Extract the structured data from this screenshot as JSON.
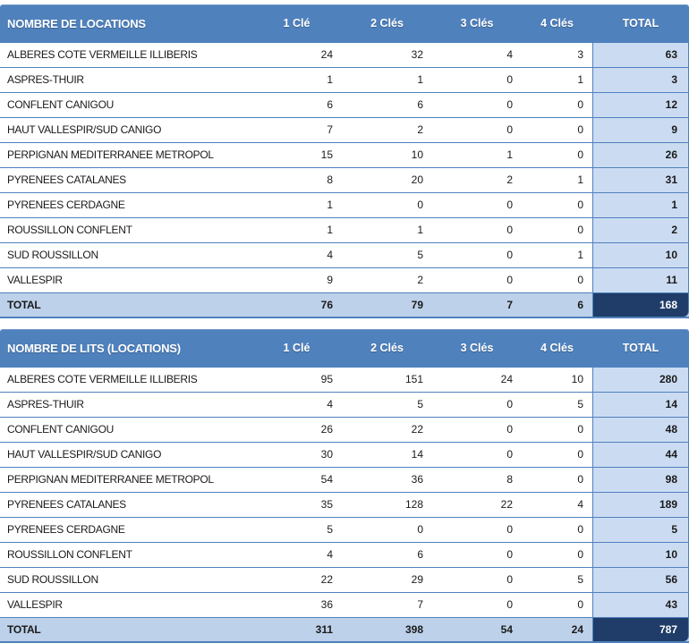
{
  "colors": {
    "header_bg": "#4F81BD",
    "header_text": "#FFFFFF",
    "line": "#4F81BD",
    "total_col_bg": "#CBDCF2",
    "total_row_bg": "#BDD1EA",
    "grand_bg": "#1F3D68",
    "grand_text": "#FFFFFF",
    "text": "#1A1A1A"
  },
  "chart_data": [
    {
      "type": "table",
      "title": "NOMBRE DE LOCATIONS",
      "columns": [
        "1 Clé",
        "2 Clés",
        "3 Clés",
        "4 Clés",
        "TOTAL"
      ],
      "rows": [
        {
          "label": "ALBERES COTE VERMEILLE ILLIBERIS",
          "values": [
            24,
            32,
            4,
            3
          ],
          "total": 63
        },
        {
          "label": "ASPRES-THUIR",
          "values": [
            1,
            1,
            0,
            1
          ],
          "total": 3
        },
        {
          "label": "CONFLENT CANIGOU",
          "values": [
            6,
            6,
            0,
            0
          ],
          "total": 12
        },
        {
          "label": "HAUT VALLESPIR/SUD CANIGO",
          "values": [
            7,
            2,
            0,
            0
          ],
          "total": 9
        },
        {
          "label": "PERPIGNAN MEDITERRANEE METROPOL",
          "values": [
            15,
            10,
            1,
            0
          ],
          "total": 26
        },
        {
          "label": "PYRENEES CATALANES",
          "values": [
            8,
            20,
            2,
            1
          ],
          "total": 31
        },
        {
          "label": "PYRENEES CERDAGNE",
          "values": [
            1,
            0,
            0,
            0
          ],
          "total": 1
        },
        {
          "label": "ROUSSILLON CONFLENT",
          "values": [
            1,
            1,
            0,
            0
          ],
          "total": 2
        },
        {
          "label": "SUD ROUSSILLON",
          "values": [
            4,
            5,
            0,
            1
          ],
          "total": 10
        },
        {
          "label": "VALLESPIR",
          "values": [
            9,
            2,
            0,
            0
          ],
          "total": 11
        }
      ],
      "total_row": {
        "label": "TOTAL",
        "values": [
          76,
          79,
          7,
          6
        ],
        "total": 168
      }
    },
    {
      "type": "table",
      "title": "NOMBRE DE LITS (LOCATIONS)",
      "columns": [
        "1 Clé",
        "2 Clés",
        "3 Clés",
        "4 Clés",
        "TOTAL"
      ],
      "rows": [
        {
          "label": "ALBERES COTE VERMEILLE ILLIBERIS",
          "values": [
            95,
            151,
            24,
            10
          ],
          "total": 280
        },
        {
          "label": "ASPRES-THUIR",
          "values": [
            4,
            5,
            0,
            5
          ],
          "total": 14
        },
        {
          "label": "CONFLENT CANIGOU",
          "values": [
            26,
            22,
            0,
            0
          ],
          "total": 48
        },
        {
          "label": "HAUT VALLESPIR/SUD CANIGO",
          "values": [
            30,
            14,
            0,
            0
          ],
          "total": 44
        },
        {
          "label": "PERPIGNAN MEDITERRANEE METROPOL",
          "values": [
            54,
            36,
            8,
            0
          ],
          "total": 98
        },
        {
          "label": "PYRENEES CATALANES",
          "values": [
            35,
            128,
            22,
            4
          ],
          "total": 189
        },
        {
          "label": "PYRENEES CERDAGNE",
          "values": [
            5,
            0,
            0,
            0
          ],
          "total": 5
        },
        {
          "label": "ROUSSILLON CONFLENT",
          "values": [
            4,
            6,
            0,
            0
          ],
          "total": 10
        },
        {
          "label": "SUD ROUSSILLON",
          "values": [
            22,
            29,
            0,
            5
          ],
          "total": 56
        },
        {
          "label": "VALLESPIR",
          "values": [
            36,
            7,
            0,
            0
          ],
          "total": 43
        }
      ],
      "total_row": {
        "label": "TOTAL",
        "values": [
          311,
          398,
          54,
          24
        ],
        "total": 787
      }
    }
  ]
}
